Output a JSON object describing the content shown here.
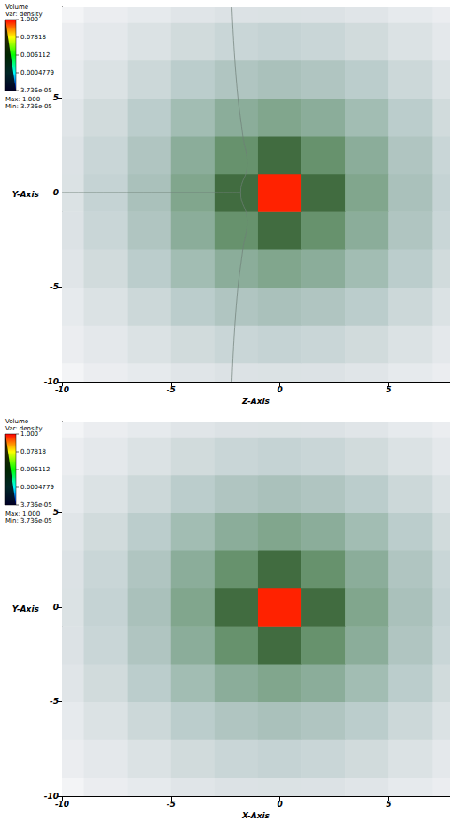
{
  "chart_data": [
    {
      "type": "heatmap",
      "xlabel": "Z-Axis",
      "ylabel": "Y-Axis",
      "xlim": [
        -10,
        7.8
      ],
      "ylim": [
        -10,
        9.8
      ],
      "xticks": [
        -10,
        -5,
        0,
        5
      ],
      "yticks": [
        -10,
        -5,
        0,
        5
      ],
      "x": [
        -10,
        -8,
        -6,
        -4,
        -2,
        0,
        2,
        4,
        6,
        8
      ],
      "y": [
        -10,
        -8,
        -6,
        -4,
        -2,
        0,
        2,
        4,
        6,
        8,
        10
      ],
      "cells": [
        [
          8e-05,
          0.00012,
          0.00015,
          0.0002,
          0.00024,
          0.00025,
          0.00024,
          0.0002,
          0.00015,
          0.00012
        ],
        [
          0.00012,
          0.00017,
          0.00025,
          0.00035,
          0.00045,
          0.0005,
          0.00045,
          0.00035,
          0.00025,
          0.00017
        ],
        [
          0.00015,
          0.00025,
          0.0004,
          0.0007,
          0.001,
          0.0012,
          0.001,
          0.0007,
          0.0004,
          0.00025
        ],
        [
          0.0002,
          0.00035,
          0.0007,
          0.0015,
          0.003,
          0.004,
          0.003,
          0.0015,
          0.0007,
          0.00035
        ],
        [
          0.00024,
          0.00045,
          0.001,
          0.003,
          0.008,
          0.02,
          0.008,
          0.003,
          0.001,
          0.00045
        ],
        [
          0.00025,
          0.0005,
          0.0012,
          0.004,
          0.02,
          1,
          0.02,
          0.004,
          0.0012,
          0.0005
        ],
        [
          0.00024,
          0.00045,
          0.001,
          0.003,
          0.008,
          0.02,
          0.008,
          0.003,
          0.001,
          0.00045
        ],
        [
          0.0002,
          0.00035,
          0.0007,
          0.0015,
          0.003,
          0.004,
          0.003,
          0.0015,
          0.0007,
          0.00035
        ],
        [
          0.00015,
          0.00025,
          0.0004,
          0.0007,
          0.001,
          0.0012,
          0.001,
          0.0007,
          0.0004,
          0.00025
        ],
        [
          0.00012,
          0.00017,
          0.00025,
          0.00035,
          0.00045,
          0.0005,
          0.00045,
          0.00035,
          0.00025,
          0.00017
        ],
        [
          8e-05,
          0.00012,
          0.00015,
          0.0002,
          0.00024,
          0.00025,
          0.00024,
          0.0002,
          0.00015,
          0.00012
        ]
      ],
      "features": [
        {
          "type": "line",
          "x": [
            -2.2,
            -2.0,
            -1.7,
            -1.5,
            -1.8,
            -1.5,
            -1.7,
            -2.0,
            -2.2
          ],
          "y": [
            9.8,
            6,
            3,
            1.5,
            0,
            -1.5,
            -3,
            -6,
            -10
          ]
        },
        {
          "type": "line",
          "x": [
            -10,
            -1.8
          ],
          "y": [
            0,
            0
          ]
        }
      ],
      "colorbar": {
        "title": "Volume",
        "variable": "Var: density",
        "range": [
          3.736e-05,
          1
        ],
        "ticks": [
          {
            "value": 1,
            "label": "1.000"
          },
          0.07818,
          0.006112,
          0.0004779,
          {
            "value": 3.736e-05,
            "label": "3.736e-05"
          }
        ],
        "max_label": "Max: 1.000",
        "min_label": "Min: 3.736e-05"
      }
    },
    {
      "type": "heatmap",
      "xlabel": "X-Axis",
      "ylabel": "Y-Axis",
      "xlim": [
        -10,
        7.8
      ],
      "ylim": [
        -10,
        9.8
      ],
      "xticks": [
        -10,
        -5,
        0,
        5
      ],
      "yticks": [
        -10,
        -5,
        0,
        5
      ],
      "x": [
        -10,
        -8,
        -6,
        -4,
        -2,
        0,
        2,
        4,
        6,
        8
      ],
      "y": [
        -10,
        -8,
        -6,
        -4,
        -2,
        0,
        2,
        4,
        6,
        8,
        10
      ],
      "cells": [
        [
          8e-05,
          0.00012,
          0.00015,
          0.0002,
          0.00024,
          0.00025,
          0.00024,
          0.0002,
          0.00015,
          0.00012
        ],
        [
          0.00012,
          0.00017,
          0.00025,
          0.00035,
          0.00045,
          0.0005,
          0.00045,
          0.00035,
          0.00025,
          0.00017
        ],
        [
          0.00015,
          0.00025,
          0.0004,
          0.0007,
          0.001,
          0.0012,
          0.001,
          0.0007,
          0.0004,
          0.00025
        ],
        [
          0.0002,
          0.00035,
          0.0007,
          0.0015,
          0.003,
          0.004,
          0.003,
          0.0015,
          0.0007,
          0.00035
        ],
        [
          0.00024,
          0.00045,
          0.001,
          0.003,
          0.008,
          0.02,
          0.008,
          0.003,
          0.001,
          0.00045
        ],
        [
          0.00025,
          0.0005,
          0.0012,
          0.004,
          0.02,
          1,
          0.02,
          0.004,
          0.0012,
          0.0005
        ],
        [
          0.00024,
          0.00045,
          0.001,
          0.003,
          0.008,
          0.02,
          0.008,
          0.003,
          0.001,
          0.00045
        ],
        [
          0.0002,
          0.00035,
          0.0007,
          0.0015,
          0.003,
          0.004,
          0.003,
          0.0015,
          0.0007,
          0.00035
        ],
        [
          0.00015,
          0.00025,
          0.0004,
          0.0007,
          0.001,
          0.0012,
          0.001,
          0.0007,
          0.0004,
          0.00025
        ],
        [
          0.00012,
          0.00017,
          0.00025,
          0.00035,
          0.00045,
          0.0005,
          0.00045,
          0.00035,
          0.00025,
          0.00017
        ],
        [
          8e-05,
          0.00012,
          0.00015,
          0.0002,
          0.00024,
          0.00025,
          0.00024,
          0.0002,
          0.00015,
          0.00012
        ]
      ],
      "colorbar": {
        "title": "Volume",
        "variable": "Var: density",
        "range": [
          3.736e-05,
          1
        ],
        "ticks": [
          {
            "value": 1,
            "label": "1.000"
          },
          0.07818,
          0.006112,
          0.0004779,
          {
            "value": 3.736e-05,
            "label": "3.736e-05"
          }
        ],
        "max_label": "Max: 1.000",
        "min_label": "Min: 3.736e-05"
      }
    }
  ]
}
